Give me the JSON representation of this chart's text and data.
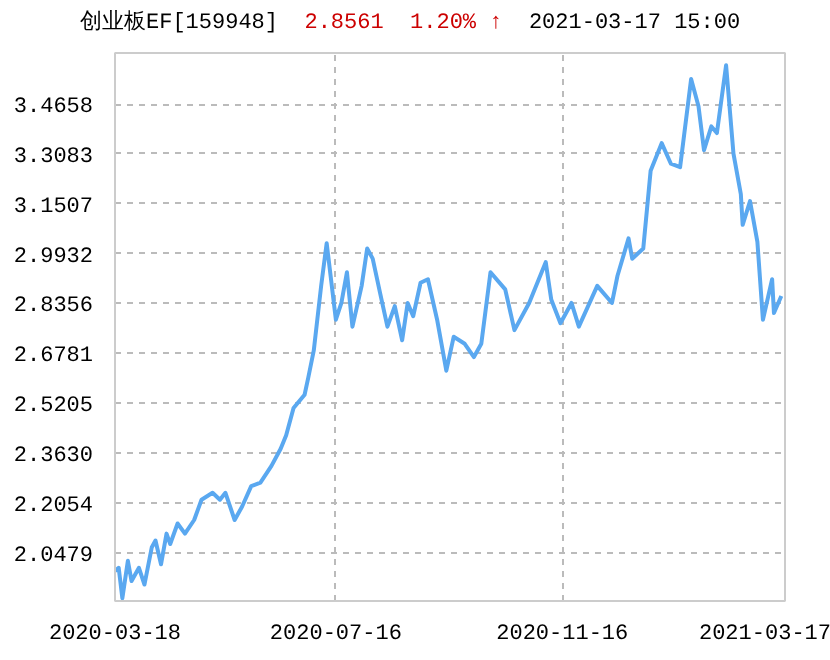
{
  "chart_data": {
    "type": "line",
    "title": "创业板EF[159948]",
    "annotations": [
      "2.8561",
      "1.20% ↑",
      "2021-03-17 15:00"
    ],
    "x": [
      "2020-03-18",
      "2020-03-20",
      "2020-03-22",
      "2020-03-25",
      "2020-03-27",
      "2020-03-31",
      "2020-04-03",
      "2020-04-07",
      "2020-04-09",
      "2020-04-12",
      "2020-04-15",
      "2020-04-17",
      "2020-04-21",
      "2020-04-25",
      "2020-04-30",
      "2020-05-04",
      "2020-05-10",
      "2020-05-14",
      "2020-05-17",
      "2020-05-22",
      "2020-05-26",
      "2020-05-31",
      "2020-06-05",
      "2020-06-11",
      "2020-06-16",
      "2020-06-19",
      "2020-06-23",
      "2020-06-29",
      "2020-07-01",
      "2020-07-04",
      "2020-07-08",
      "2020-07-11",
      "2020-07-16",
      "2020-07-19",
      "2020-07-22",
      "2020-07-25",
      "2020-07-30",
      "2020-08-02",
      "2020-08-05",
      "2020-08-09",
      "2020-08-13",
      "2020-08-17",
      "2020-08-21",
      "2020-08-24",
      "2020-08-27",
      "2020-08-31",
      "2020-09-04",
      "2020-09-09",
      "2020-09-14",
      "2020-09-18",
      "2020-09-24",
      "2020-09-29",
      "2020-10-03",
      "2020-10-08",
      "2020-10-16",
      "2020-10-21",
      "2020-10-29",
      "2020-11-07",
      "2020-11-10",
      "2020-11-15",
      "2020-11-21",
      "2020-11-25",
      "2020-12-05",
      "2020-12-13",
      "2020-12-16",
      "2020-12-22",
      "2020-12-24",
      "2020-12-30",
      "2021-01-03",
      "2021-01-09",
      "2021-01-14",
      "2021-01-19",
      "2021-01-25",
      "2021-01-29",
      "2021-02-01",
      "2021-02-05",
      "2021-02-08",
      "2021-02-13",
      "2021-02-17",
      "2021-02-21",
      "2021-02-22",
      "2021-02-26",
      "2021-03-02",
      "2021-03-05",
      "2021-03-10",
      "2021-03-11",
      "2021-03-15"
    ],
    "series": [
      {
        "color": "#5aa8f0",
        "values": [
          1.99,
          2.0,
          1.904,
          2.022,
          1.958,
          2.0,
          1.947,
          2.065,
          2.086,
          2.011,
          2.108,
          2.075,
          2.14,
          2.108,
          2.151,
          2.215,
          2.237,
          2.215,
          2.237,
          2.151,
          2.193,
          2.258,
          2.269,
          2.322,
          2.376,
          2.419,
          2.505,
          2.547,
          2.601,
          2.687,
          2.891,
          3.026,
          2.784,
          2.837,
          2.934,
          2.762,
          2.891,
          3.009,
          2.977,
          2.869,
          2.762,
          2.827,
          2.719,
          2.837,
          2.795,
          2.901,
          2.912,
          2.784,
          2.623,
          2.73,
          2.708,
          2.666,
          2.708,
          2.934,
          2.88,
          2.751,
          2.837,
          2.966,
          2.848,
          2.773,
          2.837,
          2.762,
          2.891,
          2.837,
          2.923,
          3.041,
          2.977,
          3.009,
          3.255,
          3.342,
          3.277,
          3.266,
          3.545,
          3.459,
          3.32,
          3.395,
          3.374,
          3.588,
          3.309,
          3.181,
          3.084,
          3.159,
          3.03,
          2.784,
          2.912,
          2.805,
          2.859
        ]
      }
    ],
    "xlim": [
      "2020-03-18",
      "2021-03-17"
    ],
    "xticks": [
      "2020-03-18",
      "2020-07-16",
      "2020-11-16",
      "2021-03-17"
    ],
    "ylim": [
      1.895,
      3.627
    ],
    "yticks": [
      2.0479,
      2.2054,
      {
        "value": 2.363,
        "label": "2.3630"
      },
      2.5205,
      2.6781,
      2.8356,
      2.9932,
      3.1507,
      3.3083,
      3.4658
    ],
    "grid": true
  }
}
